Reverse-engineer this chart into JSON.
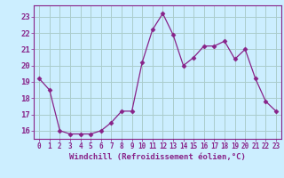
{
  "x": [
    0,
    1,
    2,
    3,
    4,
    5,
    6,
    7,
    8,
    9,
    10,
    11,
    12,
    13,
    14,
    15,
    16,
    17,
    18,
    19,
    20,
    21,
    22,
    23
  ],
  "y": [
    19.2,
    18.5,
    16.0,
    15.8,
    15.8,
    15.8,
    16.0,
    16.5,
    17.2,
    17.2,
    20.2,
    22.2,
    23.2,
    21.9,
    20.0,
    20.5,
    21.2,
    21.2,
    21.5,
    20.4,
    21.0,
    19.2,
    17.8,
    17.2
  ],
  "line_color": "#882288",
  "marker": "D",
  "marker_size": 2.5,
  "bg_color": "#cceeff",
  "grid_color": "#aacccc",
  "tick_color": "#882288",
  "label_color": "#882288",
  "xlabel": "Windchill (Refroidissement éolien,°C)",
  "ylim": [
    15.5,
    23.7
  ],
  "xlim": [
    -0.5,
    23.5
  ],
  "yticks": [
    16,
    17,
    18,
    19,
    20,
    21,
    22,
    23
  ],
  "xticks": [
    0,
    1,
    2,
    3,
    4,
    5,
    6,
    7,
    8,
    9,
    10,
    11,
    12,
    13,
    14,
    15,
    16,
    17,
    18,
    19,
    20,
    21,
    22,
    23
  ]
}
